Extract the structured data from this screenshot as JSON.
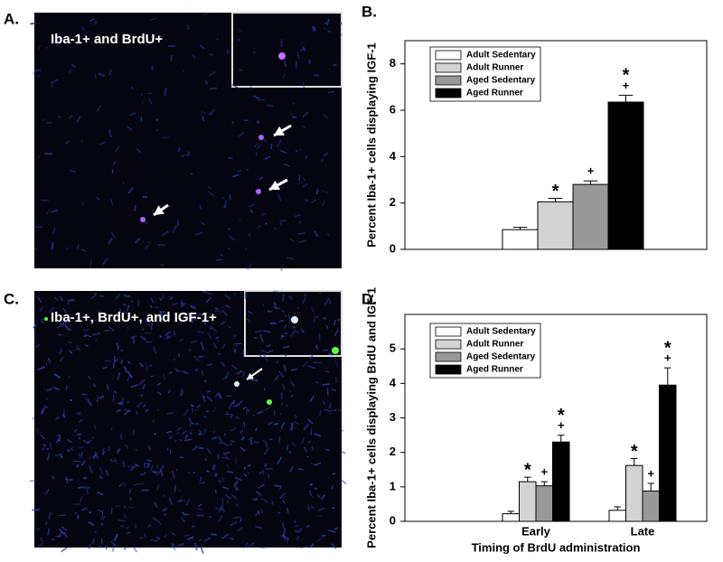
{
  "panels": [
    {
      "label": "A.",
      "caption": "Iba-1+ and BrdU+"
    },
    {
      "label": "B."
    },
    {
      "label": "C.",
      "caption": "Iba-1+, BrdU+, and IGF-1+"
    },
    {
      "label": "D."
    }
  ],
  "chart_data": [
    {
      "type": "bar",
      "ylabel": "Percent Iba-1+ cells displaying IGF-1",
      "categories": [
        null
      ],
      "ylim": [
        0,
        9
      ],
      "yticks": [
        0,
        2,
        4,
        6,
        8
      ],
      "legend": "upper-left",
      "series": [
        {
          "name": "Adult Sedentary",
          "color": "#ffffff",
          "values": [
            0.85
          ],
          "errors": [
            0.1
          ],
          "annotations": [
            []
          ]
        },
        {
          "name": "Adult Runner",
          "color": "#d3d3d3",
          "values": [
            2.05
          ],
          "errors": [
            0.15
          ],
          "annotations": [
            [
              "*"
            ]
          ]
        },
        {
          "name": "Aged Sedentary",
          "color": "#999999",
          "values": [
            2.8
          ],
          "errors": [
            0.15
          ],
          "annotations": [
            [
              "+"
            ]
          ]
        },
        {
          "name": "Aged Runner",
          "color": "#000000",
          "values": [
            6.35
          ],
          "errors": [
            0.3
          ],
          "annotations": [
            [
              "*",
              "+"
            ]
          ]
        }
      ]
    },
    {
      "type": "bar",
      "ylabel": "Percent Iba-1+ cells displaying BrdU and IGF-1",
      "xlabel": "Timing of BrdU administration",
      "categories": [
        "Early",
        "Late"
      ],
      "ylim": [
        0,
        6
      ],
      "yticks": [
        0,
        1,
        2,
        3,
        4,
        5
      ],
      "legend": "upper-left",
      "series": [
        {
          "name": "Adult Sedentary",
          "color": "#ffffff",
          "values": [
            0.22,
            0.32
          ],
          "errors": [
            0.07,
            0.1
          ],
          "annotations": [
            [],
            []
          ]
        },
        {
          "name": "Adult Runner",
          "color": "#d3d3d3",
          "values": [
            1.15,
            1.62
          ],
          "errors": [
            0.13,
            0.2
          ],
          "annotations": [
            [
              "*"
            ],
            [
              "*"
            ]
          ]
        },
        {
          "name": "Aged Sedentary",
          "color": "#999999",
          "values": [
            1.03,
            0.88
          ],
          "errors": [
            0.12,
            0.22
          ],
          "annotations": [
            [
              "+"
            ],
            [
              "+"
            ]
          ]
        },
        {
          "name": "Aged Runner",
          "color": "#000000",
          "values": [
            2.3,
            3.95
          ],
          "errors": [
            0.2,
            0.5
          ],
          "annotations": [
            [
              "*",
              "+"
            ],
            [
              "*",
              "+"
            ]
          ]
        }
      ]
    }
  ]
}
